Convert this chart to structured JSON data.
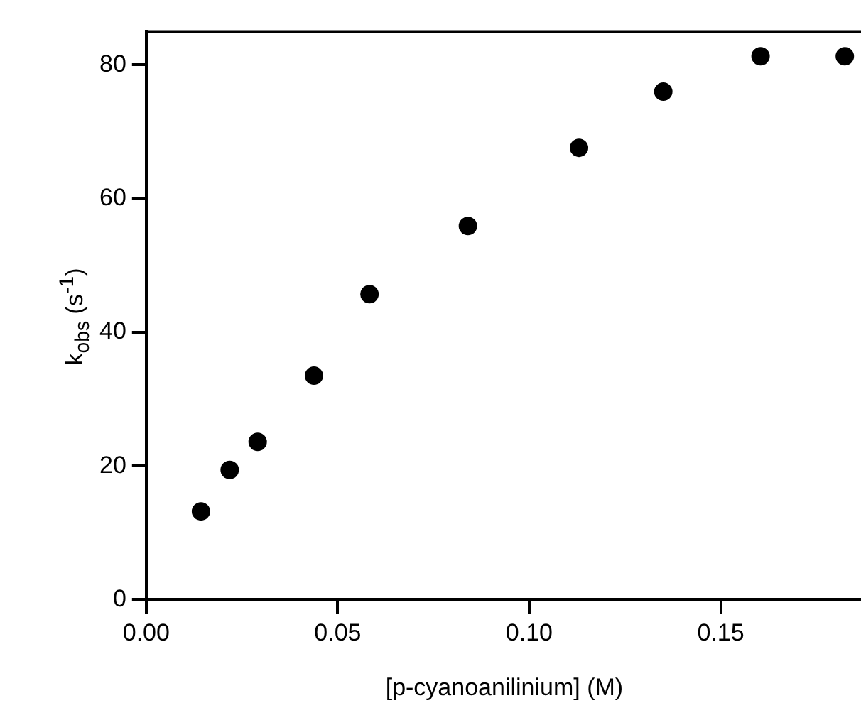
{
  "chart_data": {
    "type": "scatter",
    "xlabel": "[p-cyanoanilinium] (M)",
    "ylabel": "k$_{obs}$ (s$^{-1}$)",
    "x": [
      0.0143,
      0.0218,
      0.0291,
      0.0438,
      0.0583,
      0.084,
      0.113,
      0.135,
      0.1604,
      0.1824
    ],
    "series": [
      {
        "color": "#000000",
        "values": [
          13.2,
          19.4,
          23.6,
          33.5,
          45.7,
          55.9,
          67.6,
          76.0,
          81.3,
          81.3
        ]
      }
    ],
    "xlim": [
      0,
      0.187
    ],
    "xticks": [
      {
        "value": 0,
        "label": "0.00"
      },
      {
        "value": 0.05,
        "label": "0.05"
      },
      {
        "value": 0.1,
        "label": "0.10"
      },
      {
        "value": 0.15,
        "label": "0.15"
      }
    ],
    "ylim": [
      0,
      85
    ],
    "yticks": [
      0,
      20,
      40,
      60,
      80
    ],
    "grid": false,
    "legend": false,
    "marker": "circle"
  }
}
